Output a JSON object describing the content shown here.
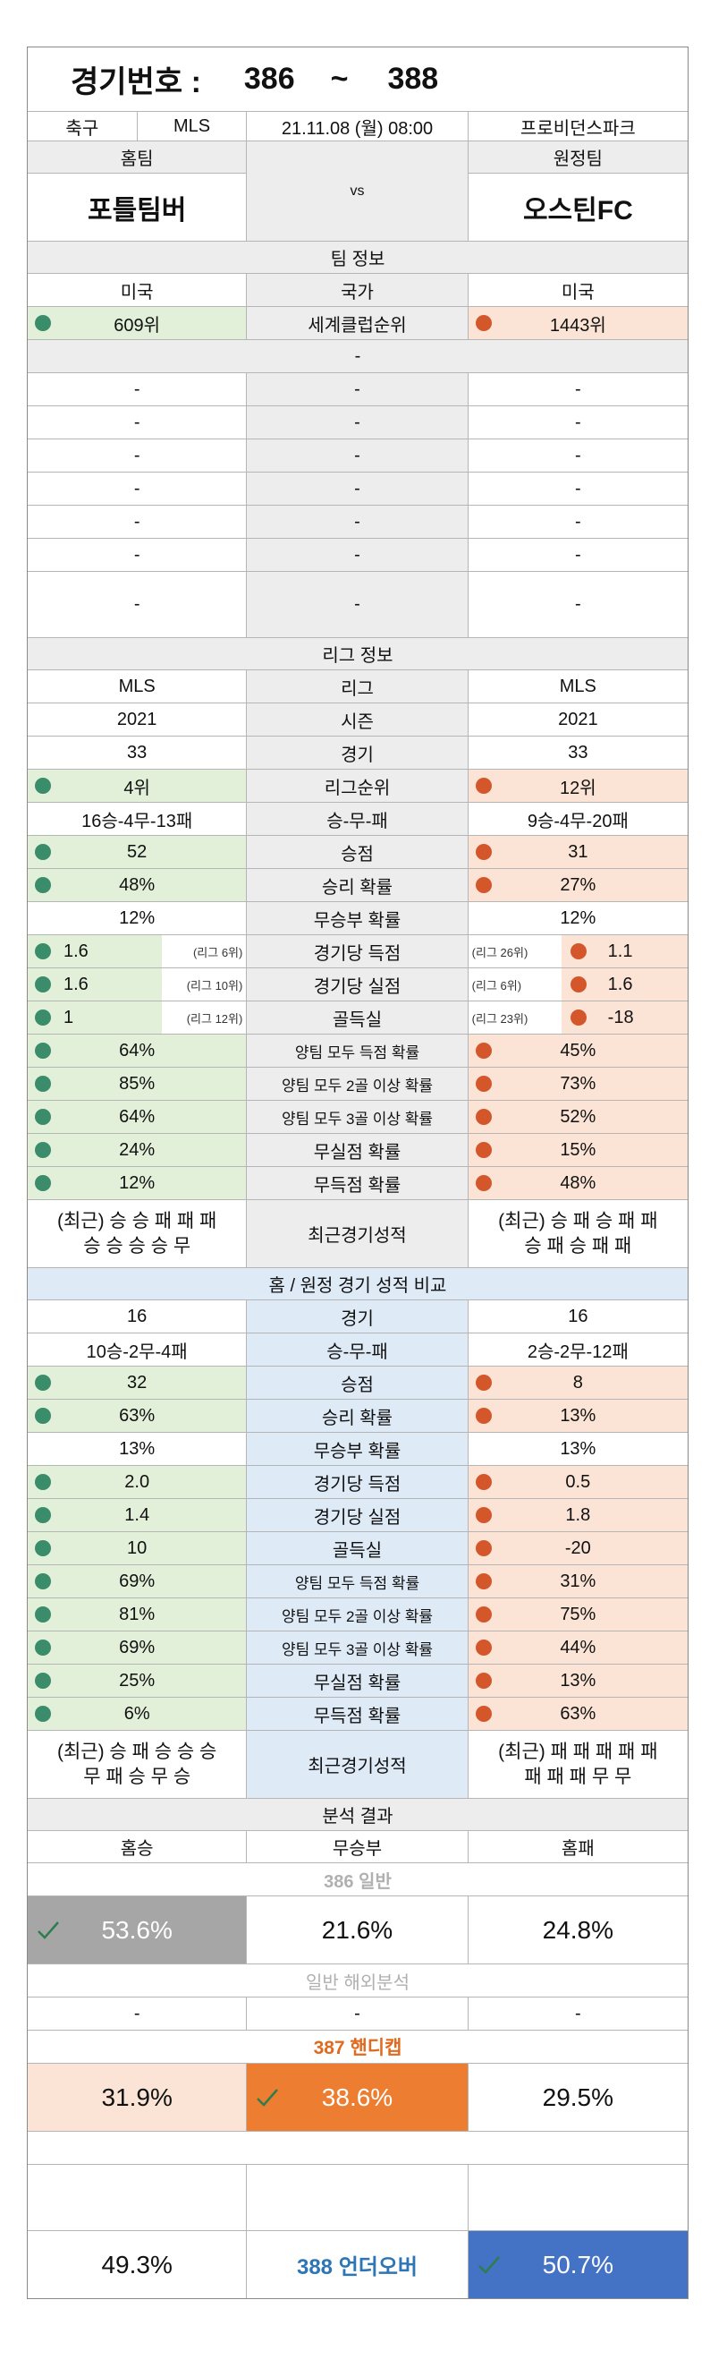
{
  "header": {
    "game_label": "경기번호 :",
    "game_from": "386",
    "tilde": "~",
    "game_to": "388"
  },
  "match": {
    "sport": "축구",
    "league": "MLS",
    "datetime": "21.11.08 (월) 08:00",
    "venue": "프로비던스파크",
    "home_label": "홈팀",
    "away_label": "원정팀",
    "home_team": "포틀팀버",
    "vs": "vs",
    "away_team": "오스틴FC"
  },
  "team_info": {
    "title": "팀 정보",
    "home_country": "미국",
    "country_label": "국가",
    "away_country": "미국",
    "home_world_rank": "609위",
    "world_rank_label": "세계클럽순위",
    "away_world_rank": "1443위",
    "blank_title": "-",
    "dash": "-"
  },
  "league_info": {
    "title": "리그 정보",
    "rows": [
      {
        "home": "MLS",
        "label": "리그",
        "away": "MLS"
      },
      {
        "home": "2021",
        "label": "시즌",
        "away": "2021"
      },
      {
        "home": "33",
        "label": "경기",
        "away": "33"
      },
      {
        "home": "4위",
        "label": "리그순위",
        "away": "12위"
      },
      {
        "home": "16승-4무-13패",
        "label": "승-무-패",
        "away": "9승-4무-20패"
      },
      {
        "home": "52",
        "label": "승점",
        "away": "31"
      },
      {
        "home": "48%",
        "label": "승리 확률",
        "away": "27%"
      },
      {
        "home": "12%",
        "label": "무승부 확률",
        "away": "12%"
      },
      {
        "home": "1.6",
        "home_rank": "(리그 6위)",
        "label": "경기당 득점",
        "away": "1.1",
        "away_rank": "(리그 26위)"
      },
      {
        "home": "1.6",
        "home_rank": "(리그 10위)",
        "label": "경기당 실점",
        "away": "1.6",
        "away_rank": "(리그 6위)"
      },
      {
        "home": "1",
        "home_rank": "(리그 12위)",
        "label": "골득실",
        "away": "-18",
        "away_rank": "(리그 23위)"
      },
      {
        "home": "64%",
        "label": "양팀 모두 득점 확률",
        "away": "45%"
      },
      {
        "home": "85%",
        "label": "양팀 모두 2골 이상 확률",
        "away": "73%"
      },
      {
        "home": "64%",
        "label": "양팀 모두 3골 이상 확률",
        "away": "52%"
      },
      {
        "home": "24%",
        "label": "무실점 확률",
        "away": "15%"
      },
      {
        "home": "12%",
        "label": "무득점 확률",
        "away": "48%"
      }
    ],
    "recent_home_1": "(최근) 승 승 패 패 패",
    "recent_home_2": "승 승 승 승 무",
    "recent_label": "최근경기성적",
    "recent_away_1": "(최근) 승 패 승 패 패",
    "recent_away_2": "승 패 승 패 패"
  },
  "home_away": {
    "title": "홈 / 원정 경기 성적 비교",
    "rows": [
      {
        "home": "16",
        "label": "경기",
        "away": "16"
      },
      {
        "home": "10승-2무-4패",
        "label": "승-무-패",
        "away": "2승-2무-12패"
      },
      {
        "home": "32",
        "label": "승점",
        "away": "8"
      },
      {
        "home": "63%",
        "label": "승리 확률",
        "away": "13%"
      },
      {
        "home": "13%",
        "label": "무승부 확률",
        "away": "13%"
      },
      {
        "home": "2.0",
        "label": "경기당 득점",
        "away": "0.5"
      },
      {
        "home": "1.4",
        "label": "경기당 실점",
        "away": "1.8"
      },
      {
        "home": "10",
        "label": "골득실",
        "away": "-20"
      },
      {
        "home": "69%",
        "label": "양팀 모두 득점 확률",
        "away": "31%"
      },
      {
        "home": "81%",
        "label": "양팀 모두 2골 이상 확률",
        "away": "75%"
      },
      {
        "home": "69%",
        "label": "양팀 모두 3골 이상 확률",
        "away": "44%"
      },
      {
        "home": "25%",
        "label": "무실점 확률",
        "away": "13%"
      },
      {
        "home": "6%",
        "label": "무득점 확률",
        "away": "63%"
      }
    ],
    "recent_home_1": "(최근) 승 패 승 승 승",
    "recent_home_2": "무 패 승 무 승",
    "recent_label": "최근경기성적",
    "recent_away_1": "(최근) 패 패 패 패 패",
    "recent_away_2": "패 패 패 무 무"
  },
  "analysis": {
    "title": "분석 결과",
    "home_win": "홈승",
    "draw": "무승부",
    "home_loss": "홈패",
    "general_label": "386 일반",
    "general_home": "53.6%",
    "general_draw": "21.6%",
    "general_loss": "24.8%",
    "overseas_label": "일반 해외분석",
    "dash": "-",
    "handicap_label": "387 핸디캡",
    "handicap_home": "31.9%",
    "handicap_draw": "38.6%",
    "handicap_loss": "29.5%",
    "under_value": "49.3%",
    "underover_label": "388 언더오버",
    "over_value": "50.7%"
  },
  "colors": {
    "home_fill": "#e2efd9",
    "away_fill": "#fbe4d5",
    "home_dot": "#3a8c6a",
    "away_dot": "#d4572c",
    "orange": "#ed7d31",
    "blue": "#4472c4",
    "gray": "#a6a6a6",
    "header_gray": "#ededed",
    "header_blue": "#deeaf6"
  },
  "icons": [
    "check-icon",
    "home-dot-icon",
    "away-dot-icon"
  ]
}
